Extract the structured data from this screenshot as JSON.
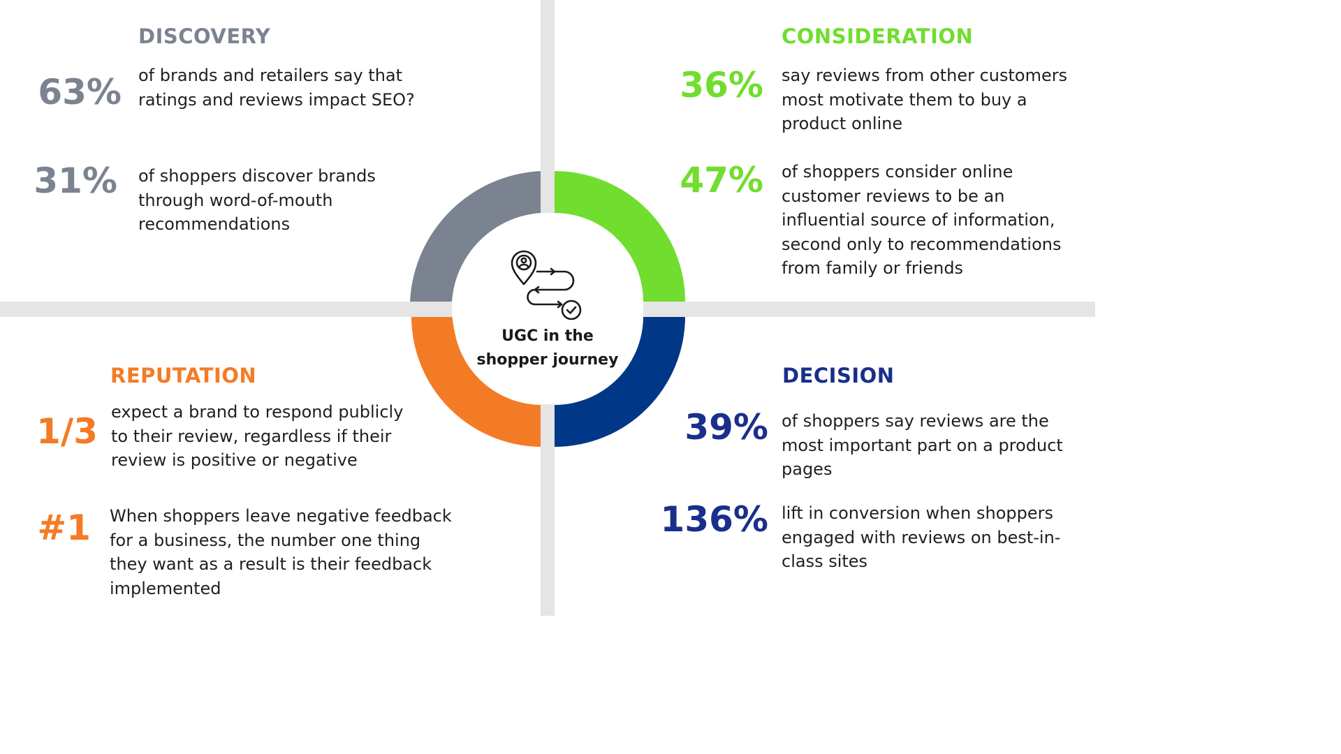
{
  "colors": {
    "discovery": "#7b8391",
    "consideration": "#71dd2e",
    "reputation": "#f47b25",
    "decision": "#003787",
    "divider": "#e5e5e5"
  },
  "center": {
    "icon": "journey-route-icon",
    "title_line1": "UGC in the",
    "title_line2": "shopper journey"
  },
  "discovery": {
    "heading": "DISCOVERY",
    "stats": [
      {
        "value": "63%",
        "text": "of brands and retailers say that ratings and reviews impact SEO?"
      },
      {
        "value": "31%",
        "text": "of shoppers discover brands through word-of-mouth recommendations"
      }
    ]
  },
  "consideration": {
    "heading": "CONSIDERATION",
    "stats": [
      {
        "value": "36%",
        "text": "say reviews from other customers most motivate them to buy a product online"
      },
      {
        "value": "47%",
        "text": "of shoppers consider online customer reviews to be an influential source of information, second only to recommendations from family or friends"
      }
    ]
  },
  "reputation": {
    "heading": "REPUTATION",
    "stats": [
      {
        "value": "1/3",
        "text": "expect a brand to respond publicly to their review, regardless if their review is positive or negative"
      },
      {
        "value": "#1",
        "text": "When shoppers leave negative feedback for a business, the number one thing they want as a result is their feedback implemented"
      }
    ]
  },
  "decision": {
    "heading": "DECISION",
    "stats": [
      {
        "value": "39%",
        "text": "of shoppers say reviews are the most important part on a product pages"
      },
      {
        "value": "136%",
        "text": "lift in conversion when shoppers engaged with reviews on best-in-class sites"
      }
    ]
  }
}
